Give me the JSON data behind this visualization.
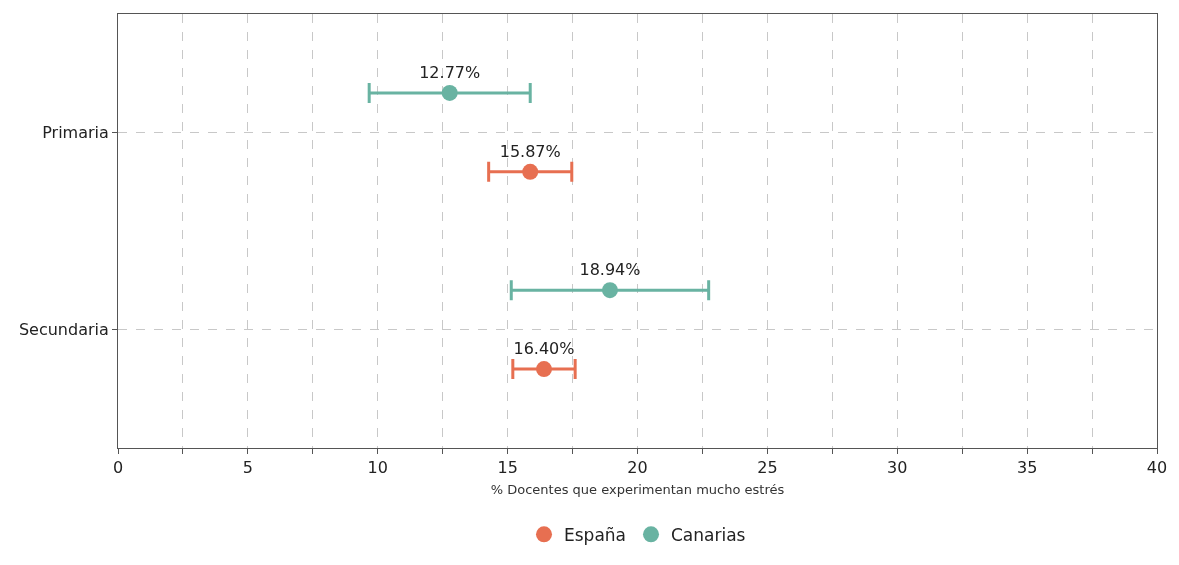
{
  "chart_data": {
    "type": "scatter",
    "orientation": "horizontal",
    "xlabel": "% Docentes que experimentan mucho estrés",
    "categories": [
      "Primaria",
      "Secundaria"
    ],
    "series": [
      {
        "name": "España",
        "color": "#e76f51",
        "values": [
          15.87,
          16.4
        ],
        "errors": [
          1.6,
          1.2
        ],
        "value_labels": [
          "15.87%",
          "16.40%"
        ]
      },
      {
        "name": "Canarias",
        "color": "#69b3a2",
        "values": [
          12.77,
          18.94
        ],
        "errors": [
          3.1,
          3.8
        ],
        "value_labels": [
          "12.77%",
          "18.94%"
        ]
      }
    ],
    "xlim": [
      0,
      40
    ],
    "xticks": [
      0,
      {
        "value": 2.5,
        "label": null
      },
      5,
      {
        "value": 7.5,
        "label": null
      },
      10,
      {
        "value": 12.5,
        "label": null
      },
      15,
      {
        "value": 17.5,
        "label": null
      },
      20,
      {
        "value": 22.5,
        "label": null
      },
      25,
      {
        "value": 27.5,
        "label": null
      },
      30,
      {
        "value": 32.5,
        "label": null
      },
      35,
      {
        "value": 37.5,
        "label": null
      },
      40
    ],
    "grid": true,
    "legend": "bottom",
    "marker": "circle"
  }
}
